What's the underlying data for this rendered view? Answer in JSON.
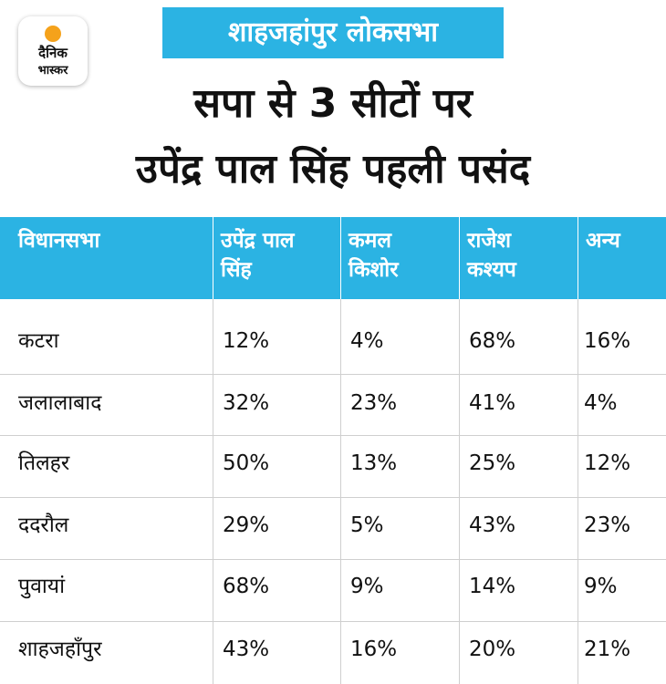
{
  "logo": {
    "line1": "दैनिक",
    "line2": "भास्कर"
  },
  "banner": "शाहजहांपुर लोकसभा",
  "headline": [
    "सपा से 3 सीटों पर",
    "उपेंद्र पाल सिंह पहली पसंद"
  ],
  "colors": {
    "accent": "#2bb3e3",
    "logo_dot": "#f5a21b",
    "text": "#111111"
  },
  "chart_data": {
    "type": "table",
    "columns": [
      [
        "विधानसभा"
      ],
      [
        "उपेंद्र पाल",
        "सिंह"
      ],
      [
        "कमल",
        "किशोर"
      ],
      [
        "राजेश",
        "कश्यप"
      ],
      [
        "अन्य"
      ]
    ],
    "rows": [
      [
        "कटरा",
        "12%",
        "4%",
        "68%",
        "16%"
      ],
      [
        "जलालाबाद",
        "32%",
        "23%",
        "41%",
        "4%"
      ],
      [
        "तिलहर",
        "50%",
        "13%",
        "25%",
        "12%"
      ],
      [
        "ददरौल",
        "29%",
        "5%",
        "43%",
        "23%"
      ],
      [
        "पुवायां",
        "68%",
        "9%",
        "14%",
        "9%"
      ],
      [
        "शाहजहाँपुर",
        "43%",
        "16%",
        "20%",
        "21%"
      ]
    ]
  }
}
